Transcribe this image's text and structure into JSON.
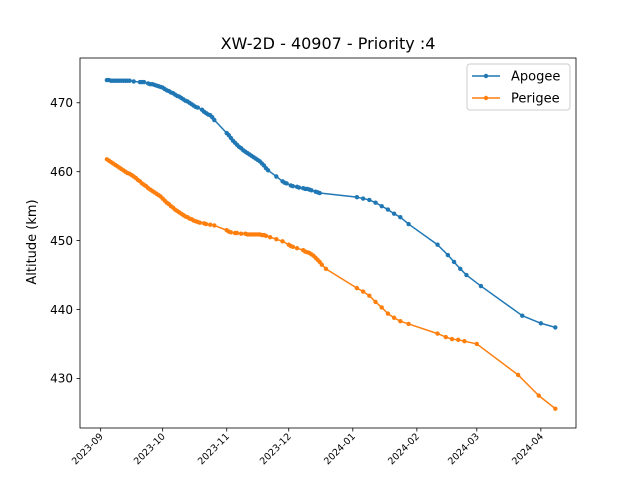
{
  "chart_data": {
    "type": "line",
    "title": "XW-2D - 40907 - Priority :4",
    "xlabel": "",
    "ylabel": "Altitude (km)",
    "xlim": [
      "2023-08-22",
      "2024-04-18"
    ],
    "ylim": [
      422.8,
      476.5
    ],
    "yticks": [
      430,
      440,
      450,
      460,
      470
    ],
    "xticks": [
      "2023-09-01",
      "2023-10-01",
      "2023-11-01",
      "2023-12-01",
      "2024-01-01",
      "2024-02-01",
      "2024-03-01",
      "2024-04-01"
    ],
    "xtick_labels": [
      "2023-09",
      "2023-10",
      "2023-11",
      "2023-12",
      "2024-01",
      "2024-02",
      "2024-03",
      "2024-04"
    ],
    "legend_position": "upper right",
    "grid": false,
    "series": [
      {
        "name": "Apogee",
        "color": "#1f77b4",
        "points": [
          [
            "2023-09-04",
            473.3
          ],
          [
            "2023-09-05",
            473.3
          ],
          [
            "2023-09-06",
            473.2
          ],
          [
            "2023-09-07",
            473.2
          ],
          [
            "2023-09-08",
            473.2
          ],
          [
            "2023-09-09",
            473.2
          ],
          [
            "2023-09-10",
            473.2
          ],
          [
            "2023-09-11",
            473.2
          ],
          [
            "2023-09-12",
            473.2
          ],
          [
            "2023-09-13",
            473.2
          ],
          [
            "2023-09-14",
            473.2
          ],
          [
            "2023-09-15",
            473.2
          ],
          [
            "2023-09-17",
            473.1
          ],
          [
            "2023-09-20",
            473.0
          ],
          [
            "2023-09-21",
            473.0
          ],
          [
            "2023-09-22",
            473.0
          ],
          [
            "2023-09-24",
            472.8
          ],
          [
            "2023-09-25",
            472.7
          ],
          [
            "2023-09-26",
            472.7
          ],
          [
            "2023-09-27",
            472.6
          ],
          [
            "2023-09-28",
            472.5
          ],
          [
            "2023-09-29",
            472.4
          ],
          [
            "2023-09-30",
            472.3
          ],
          [
            "2023-10-01",
            472.2
          ],
          [
            "2023-10-02",
            472.0
          ],
          [
            "2023-10-03",
            471.8
          ],
          [
            "2023-10-04",
            471.7
          ],
          [
            "2023-10-05",
            471.5
          ],
          [
            "2023-10-06",
            471.4
          ],
          [
            "2023-10-07",
            471.2
          ],
          [
            "2023-10-08",
            471.0
          ],
          [
            "2023-10-09",
            470.9
          ],
          [
            "2023-10-10",
            470.7
          ],
          [
            "2023-10-11",
            470.5
          ],
          [
            "2023-10-12",
            470.3
          ],
          [
            "2023-10-13",
            470.2
          ],
          [
            "2023-10-14",
            470.0
          ],
          [
            "2023-10-15",
            469.8
          ],
          [
            "2023-10-16",
            469.6
          ],
          [
            "2023-10-17",
            469.4
          ],
          [
            "2023-10-18",
            469.3
          ],
          [
            "2023-10-20",
            469.0
          ],
          [
            "2023-10-21",
            468.7
          ],
          [
            "2023-10-22",
            468.5
          ],
          [
            "2023-10-23",
            468.3
          ],
          [
            "2023-10-24",
            468.2
          ],
          [
            "2023-10-25",
            467.9
          ],
          [
            "2023-10-26",
            467.5
          ],
          [
            "2023-11-01",
            465.6
          ],
          [
            "2023-11-02",
            465.3
          ],
          [
            "2023-11-03",
            464.9
          ],
          [
            "2023-11-04",
            464.5
          ],
          [
            "2023-11-05",
            464.2
          ],
          [
            "2023-11-06",
            463.9
          ],
          [
            "2023-11-07",
            463.6
          ],
          [
            "2023-11-08",
            463.4
          ],
          [
            "2023-11-09",
            463.1
          ],
          [
            "2023-11-10",
            462.9
          ],
          [
            "2023-11-11",
            462.7
          ],
          [
            "2023-11-12",
            462.5
          ],
          [
            "2023-11-13",
            462.3
          ],
          [
            "2023-11-14",
            462.1
          ],
          [
            "2023-11-15",
            461.9
          ],
          [
            "2023-11-16",
            461.7
          ],
          [
            "2023-11-17",
            461.5
          ],
          [
            "2023-11-18",
            461.2
          ],
          [
            "2023-11-19",
            460.9
          ],
          [
            "2023-11-20",
            460.5
          ],
          [
            "2023-11-21",
            460.2
          ],
          [
            "2023-11-25",
            459.3
          ],
          [
            "2023-11-28",
            458.6
          ],
          [
            "2023-11-29",
            458.4
          ],
          [
            "2023-11-30",
            458.3
          ],
          [
            "2023-12-02",
            458.0
          ],
          [
            "2023-12-03",
            457.9
          ],
          [
            "2023-12-05",
            457.8
          ],
          [
            "2023-12-06",
            457.7
          ],
          [
            "2023-12-08",
            457.6
          ],
          [
            "2023-12-09",
            457.5
          ],
          [
            "2023-12-10",
            457.5
          ],
          [
            "2023-12-11",
            457.4
          ],
          [
            "2023-12-12",
            457.3
          ],
          [
            "2023-12-14",
            457.1
          ],
          [
            "2023-12-15",
            457.0
          ],
          [
            "2023-12-16",
            456.9
          ],
          [
            "2024-01-03",
            456.3
          ],
          [
            "2024-01-06",
            456.1
          ],
          [
            "2024-01-09",
            455.9
          ],
          [
            "2024-01-12",
            455.5
          ],
          [
            "2024-01-15",
            455.0
          ],
          [
            "2024-01-18",
            454.5
          ],
          [
            "2024-01-21",
            453.9
          ],
          [
            "2024-01-24",
            453.4
          ],
          [
            "2024-01-28",
            452.4
          ],
          [
            "2024-02-11",
            449.4
          ],
          [
            "2024-02-16",
            447.9
          ],
          [
            "2024-02-19",
            446.9
          ],
          [
            "2024-02-22",
            445.9
          ],
          [
            "2024-02-25",
            445.0
          ],
          [
            "2024-03-03",
            443.4
          ],
          [
            "2024-03-23",
            439.1
          ],
          [
            "2024-04-01",
            438.0
          ],
          [
            "2024-04-08",
            437.4
          ]
        ]
      },
      {
        "name": "Perigee",
        "color": "#ff7f0e",
        "points": [
          [
            "2023-09-04",
            461.8
          ],
          [
            "2023-09-05",
            461.6
          ],
          [
            "2023-09-06",
            461.4
          ],
          [
            "2023-09-07",
            461.2
          ],
          [
            "2023-09-08",
            461.0
          ],
          [
            "2023-09-09",
            460.8
          ],
          [
            "2023-09-10",
            460.6
          ],
          [
            "2023-09-11",
            460.4
          ],
          [
            "2023-09-12",
            460.2
          ],
          [
            "2023-09-13",
            460.0
          ],
          [
            "2023-09-14",
            459.8
          ],
          [
            "2023-09-15",
            459.7
          ],
          [
            "2023-09-16",
            459.5
          ],
          [
            "2023-09-17",
            459.3
          ],
          [
            "2023-09-18",
            459.1
          ],
          [
            "2023-09-19",
            458.8
          ],
          [
            "2023-09-20",
            458.6
          ],
          [
            "2023-09-21",
            458.3
          ],
          [
            "2023-09-22",
            458.1
          ],
          [
            "2023-09-23",
            457.9
          ],
          [
            "2023-09-24",
            457.6
          ],
          [
            "2023-09-25",
            457.4
          ],
          [
            "2023-09-26",
            457.2
          ],
          [
            "2023-09-27",
            457.0
          ],
          [
            "2023-09-28",
            456.8
          ],
          [
            "2023-09-29",
            456.6
          ],
          [
            "2023-09-30",
            456.4
          ],
          [
            "2023-10-01",
            456.1
          ],
          [
            "2023-10-02",
            455.8
          ],
          [
            "2023-10-03",
            455.5
          ],
          [
            "2023-10-04",
            455.3
          ],
          [
            "2023-10-05",
            455.0
          ],
          [
            "2023-10-06",
            454.8
          ],
          [
            "2023-10-07",
            454.5
          ],
          [
            "2023-10-08",
            454.3
          ],
          [
            "2023-10-09",
            454.1
          ],
          [
            "2023-10-10",
            453.9
          ],
          [
            "2023-10-11",
            453.7
          ],
          [
            "2023-10-12",
            453.5
          ],
          [
            "2023-10-13",
            453.4
          ],
          [
            "2023-10-14",
            453.2
          ],
          [
            "2023-10-15",
            453.1
          ],
          [
            "2023-10-16",
            452.9
          ],
          [
            "2023-10-17",
            452.8
          ],
          [
            "2023-10-18",
            452.7
          ],
          [
            "2023-10-19",
            452.6
          ],
          [
            "2023-10-21",
            452.5
          ],
          [
            "2023-10-22",
            452.4
          ],
          [
            "2023-10-24",
            452.3
          ],
          [
            "2023-10-26",
            452.2
          ],
          [
            "2023-11-01",
            451.5
          ],
          [
            "2023-11-02",
            451.3
          ],
          [
            "2023-11-03",
            451.2
          ],
          [
            "2023-11-05",
            451.1
          ],
          [
            "2023-11-06",
            451.1
          ],
          [
            "2023-11-08",
            451.0
          ],
          [
            "2023-11-10",
            451.0
          ],
          [
            "2023-11-11",
            450.9
          ],
          [
            "2023-11-12",
            450.9
          ],
          [
            "2023-11-13",
            450.9
          ],
          [
            "2023-11-14",
            450.9
          ],
          [
            "2023-11-15",
            450.9
          ],
          [
            "2023-11-16",
            450.9
          ],
          [
            "2023-11-17",
            450.9
          ],
          [
            "2023-11-18",
            450.8
          ],
          [
            "2023-11-19",
            450.8
          ],
          [
            "2023-11-20",
            450.7
          ],
          [
            "2023-11-22",
            450.5
          ],
          [
            "2023-11-25",
            450.2
          ],
          [
            "2023-11-28",
            449.9
          ],
          [
            "2023-12-01",
            449.4
          ],
          [
            "2023-12-02",
            449.2
          ],
          [
            "2023-12-03",
            449.1
          ],
          [
            "2023-12-05",
            448.9
          ],
          [
            "2023-12-08",
            448.6
          ],
          [
            "2023-12-09",
            448.4
          ],
          [
            "2023-12-10",
            448.3
          ],
          [
            "2023-12-11",
            448.2
          ],
          [
            "2023-12-12",
            448.0
          ],
          [
            "2023-12-13",
            447.8
          ],
          [
            "2023-12-14",
            447.5
          ],
          [
            "2023-12-15",
            447.2
          ],
          [
            "2023-12-16",
            446.9
          ],
          [
            "2023-12-17",
            446.5
          ],
          [
            "2023-12-19",
            445.9
          ],
          [
            "2024-01-03",
            443.1
          ],
          [
            "2024-01-06",
            442.6
          ],
          [
            "2024-01-09",
            442.0
          ],
          [
            "2024-01-12",
            441.1
          ],
          [
            "2024-01-15",
            440.3
          ],
          [
            "2024-01-18",
            439.4
          ],
          [
            "2024-01-21",
            438.8
          ],
          [
            "2024-01-24",
            438.3
          ],
          [
            "2024-01-28",
            437.9
          ],
          [
            "2024-02-11",
            436.5
          ],
          [
            "2024-02-15",
            436.0
          ],
          [
            "2024-02-18",
            435.7
          ],
          [
            "2024-02-21",
            435.6
          ],
          [
            "2024-02-24",
            435.4
          ],
          [
            "2024-03-01",
            435.0
          ],
          [
            "2024-03-21",
            430.5
          ],
          [
            "2024-03-31",
            427.5
          ],
          [
            "2024-04-08",
            425.6
          ]
        ]
      }
    ]
  }
}
